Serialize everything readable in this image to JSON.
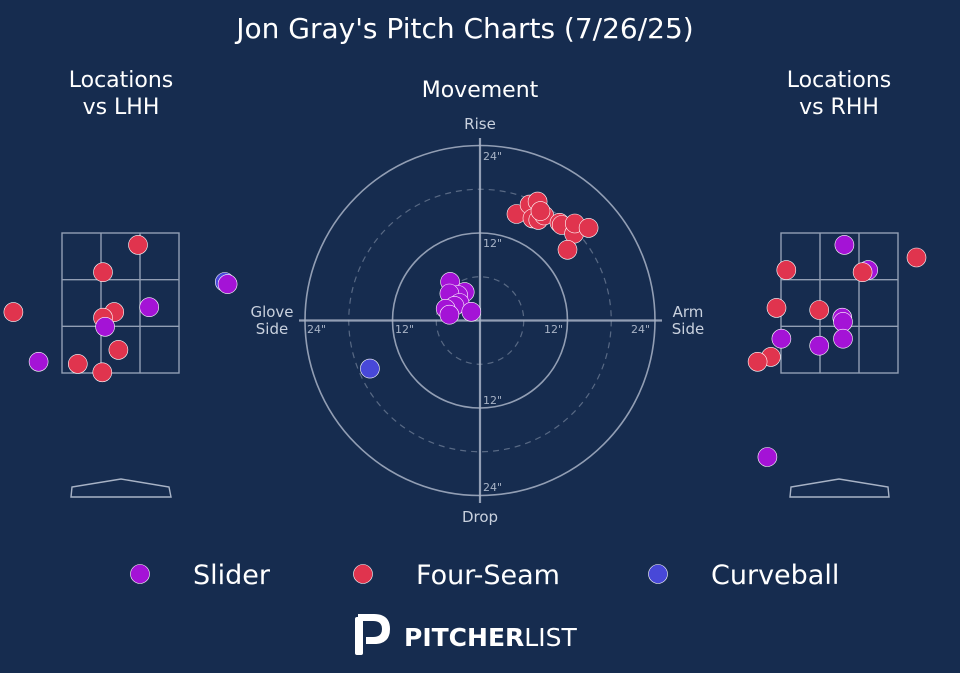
{
  "title": "Jon Gray's Pitch Charts (7/26/25)",
  "colors": {
    "background": "#162c4f",
    "Slider": "#a413d6",
    "Four-Seam": "#e0344e",
    "Curveball": "#4848d8",
    "grid": "#a8b3c6"
  },
  "legend": [
    {
      "name": "Slider",
      "color": "#a413d6"
    },
    {
      "name": "Four-Seam",
      "color": "#e0344e"
    },
    {
      "name": "Curveball",
      "color": "#4848d8"
    }
  ],
  "brand": {
    "bold": "PITCHER",
    "light": "LIST",
    "logo_icon": "pitcherlist-logo-icon"
  },
  "chart_data": [
    {
      "type": "scatter",
      "title": "Locations\nvs LHH",
      "title_line1": "Locations",
      "title_line2": "vs LHH",
      "xlim": [
        -3,
        3
      ],
      "ylim": [
        -0.8,
        5
      ],
      "strike_zone": {
        "x": [
          -0.83,
          0.83
        ],
        "y": [
          1.5,
          3.5
        ]
      },
      "points": [
        {
          "pitch": "Four-Seam",
          "x": 0.25,
          "y": 3.33
        },
        {
          "pitch": "Four-Seam",
          "x": -0.25,
          "y": 2.94
        },
        {
          "pitch": "Curveball",
          "x": 1.49,
          "y": 2.8
        },
        {
          "pitch": "Slider",
          "x": 1.53,
          "y": 2.77
        },
        {
          "pitch": "Four-Seam",
          "x": -1.53,
          "y": 2.37
        },
        {
          "pitch": "Slider",
          "x": 0.41,
          "y": 2.44
        },
        {
          "pitch": "Four-Seam",
          "x": -0.09,
          "y": 2.37
        },
        {
          "pitch": "Four-Seam",
          "x": -0.25,
          "y": 2.29
        },
        {
          "pitch": "Slider",
          "x": -0.22,
          "y": 2.16
        },
        {
          "pitch": "Four-Seam",
          "x": -0.03,
          "y": 1.83
        },
        {
          "pitch": "Slider",
          "x": -1.17,
          "y": 1.66
        },
        {
          "pitch": "Four-Seam",
          "x": -0.61,
          "y": 1.63
        },
        {
          "pitch": "Four-Seam",
          "x": -0.26,
          "y": 1.51
        }
      ]
    },
    {
      "type": "scatter",
      "title": "Movement",
      "axis_labels": {
        "top": "Rise",
        "bottom": "Drop",
        "left_line1": "Glove",
        "left_line2": "Side",
        "right_line1": "Arm",
        "right_line2": "Side"
      },
      "ring_labels": {
        "top_outer": "24\"",
        "top_inner": "12\"",
        "bottom_inner": "12\"",
        "bottom_outer": "24\"",
        "left_outer": "24\"",
        "left_inner": "12\"",
        "right_inner": "12\"",
        "right_outer": "24\""
      },
      "xlim": [
        -24,
        24
      ],
      "ylim": [
        -24,
        24
      ],
      "rings": [
        12,
        24
      ],
      "dashed_rings": [
        6,
        18
      ],
      "units": "inches",
      "points": [
        {
          "pitch": "Four-Seam",
          "x": 5.0,
          "y": 14.6
        },
        {
          "pitch": "Four-Seam",
          "x": 6.8,
          "y": 15.9
        },
        {
          "pitch": "Four-Seam",
          "x": 7.9,
          "y": 16.3
        },
        {
          "pitch": "Four-Seam",
          "x": 7.2,
          "y": 14.0
        },
        {
          "pitch": "Four-Seam",
          "x": 8.0,
          "y": 13.8
        },
        {
          "pitch": "Four-Seam",
          "x": 8.8,
          "y": 14.4
        },
        {
          "pitch": "Four-Seam",
          "x": 10.9,
          "y": 13.4
        },
        {
          "pitch": "Four-Seam",
          "x": 11.2,
          "y": 13.1
        },
        {
          "pitch": "Four-Seam",
          "x": 12.9,
          "y": 11.9
        },
        {
          "pitch": "Four-Seam",
          "x": 13.0,
          "y": 13.3
        },
        {
          "pitch": "Four-Seam",
          "x": 14.9,
          "y": 12.7
        },
        {
          "pitch": "Four-Seam",
          "x": 12.0,
          "y": 9.7
        },
        {
          "pitch": "Four-Seam",
          "x": 8.3,
          "y": 15.0
        },
        {
          "pitch": "Slider",
          "x": -4.1,
          "y": 5.3
        },
        {
          "pitch": "Slider",
          "x": -2.1,
          "y": 3.9
        },
        {
          "pitch": "Slider",
          "x": -3.0,
          "y": 3.5
        },
        {
          "pitch": "Slider",
          "x": -4.2,
          "y": 3.7
        },
        {
          "pitch": "Slider",
          "x": -2.8,
          "y": 2.4
        },
        {
          "pitch": "Slider",
          "x": -3.5,
          "y": 2.0
        },
        {
          "pitch": "Slider",
          "x": -4.7,
          "y": 1.6
        },
        {
          "pitch": "Slider",
          "x": -1.2,
          "y": 1.2
        },
        {
          "pitch": "Slider",
          "x": -4.2,
          "y": 0.8
        },
        {
          "pitch": "Curveball",
          "x": -15.1,
          "y": -6.6
        }
      ]
    },
    {
      "type": "scatter",
      "title": "Locations\nvs RHH",
      "title_line1": "Locations",
      "title_line2": "vs RHH",
      "xlim": [
        -3,
        3
      ],
      "ylim": [
        -0.8,
        5
      ],
      "strike_zone": {
        "x": [
          -0.83,
          0.83
        ],
        "y": [
          1.5,
          3.5
        ]
      },
      "points": [
        {
          "pitch": "Slider",
          "x": 0.07,
          "y": 3.33
        },
        {
          "pitch": "Four-Seam",
          "x": 1.1,
          "y": 3.15
        },
        {
          "pitch": "Four-Seam",
          "x": -0.76,
          "y": 2.97
        },
        {
          "pitch": "Slider",
          "x": 0.41,
          "y": 2.97
        },
        {
          "pitch": "Four-Seam",
          "x": 0.33,
          "y": 2.94
        },
        {
          "pitch": "Four-Seam",
          "x": -0.9,
          "y": 2.43
        },
        {
          "pitch": "Four-Seam",
          "x": -0.29,
          "y": 2.4
        },
        {
          "pitch": "Slider",
          "x": 0.04,
          "y": 2.29
        },
        {
          "pitch": "Slider",
          "x": 0.05,
          "y": 2.23
        },
        {
          "pitch": "Slider",
          "x": -0.83,
          "y": 1.99
        },
        {
          "pitch": "Slider",
          "x": 0.05,
          "y": 1.99
        },
        {
          "pitch": "Slider",
          "x": -0.29,
          "y": 1.89
        },
        {
          "pitch": "Four-Seam",
          "x": -0.98,
          "y": 1.73
        },
        {
          "pitch": "Four-Seam",
          "x": -1.17,
          "y": 1.66
        },
        {
          "pitch": "Slider",
          "x": -1.03,
          "y": 0.3
        }
      ]
    }
  ]
}
